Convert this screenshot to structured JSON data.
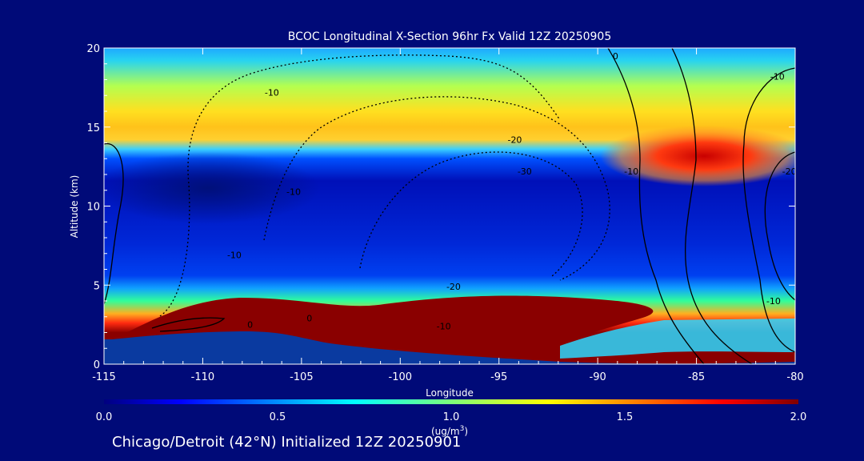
{
  "chart_data": {
    "type": "heatmap",
    "title": "BCOC Longitudinal X-Section 96hr  Fx Valid 12Z 20250905",
    "xlabel": "Longitude",
    "ylabel": "Altitude (km)",
    "xlim": [
      -115,
      -80
    ],
    "ylim": [
      0,
      20
    ],
    "x_ticks": [
      "-115",
      "-110",
      "-105",
      "-100",
      "-95",
      "-90",
      "-85",
      "-80"
    ],
    "x_tick_values": [
      -115,
      -110,
      -105,
      -100,
      -95,
      -90,
      -85,
      -80
    ],
    "y_ticks": [
      "0",
      "5",
      "10",
      "15",
      "20"
    ],
    "y_tick_values": [
      0,
      5,
      10,
      15,
      20
    ],
    "colorbar": {
      "min": 0.0,
      "max": 2.0,
      "ticks": [
        "0.0",
        "0.5",
        "1.0",
        "1.5",
        "2.0"
      ],
      "tick_values": [
        0.0,
        0.5,
        1.0,
        1.5,
        2.0
      ],
      "unit_label": "(ug/m",
      "unit_superscript": "3",
      "unit_close": ")"
    },
    "shaded_layers": [
      {
        "field": "BCOC",
        "alt_km": [
          16.5,
          20
        ],
        "lon_range": [
          -115,
          -80
        ],
        "value": 1.0
      },
      {
        "field": "BCOC",
        "alt_km": [
          14,
          16.5
        ],
        "lon_range": [
          -115,
          -80
        ],
        "value": 1.4
      },
      {
        "field": "BCOC",
        "alt_km": [
          11,
          14
        ],
        "lon_range": [
          -115,
          -80
        ],
        "value": 0.3
      },
      {
        "field": "BCOC",
        "alt_km": [
          6,
          11
        ],
        "lon_range": [
          -115,
          -80
        ],
        "value": 0.2
      },
      {
        "field": "BCOC",
        "alt_km": [
          3.5,
          5.5
        ],
        "lon_range": [
          -114,
          -86
        ],
        "value": 0.9
      },
      {
        "field": "BCOC",
        "alt_km": [
          1,
          3.5
        ],
        "lon_range": [
          -112,
          -87
        ],
        "value": 2.0
      },
      {
        "field": "BCOC",
        "alt_km": [
          12,
          14
        ],
        "lon_range": [
          -88,
          -80
        ],
        "value": 1.9
      }
    ],
    "contour_labels": [
      {
        "text": "-10",
        "lon": -106.5,
        "alt": 17
      },
      {
        "text": "-20",
        "lon": -94.2,
        "alt": 14
      },
      {
        "text": "-30",
        "lon": -93.7,
        "alt": 12
      },
      {
        "text": "-10",
        "lon": -88.3,
        "alt": 12
      },
      {
        "text": "-10",
        "lon": -80.9,
        "alt": 18
      },
      {
        "text": "-20",
        "lon": -80.3,
        "alt": 12
      },
      {
        "text": "-10",
        "lon": -105.4,
        "alt": 10.7
      },
      {
        "text": "-20",
        "lon": -97.3,
        "alt": 4.7
      },
      {
        "text": "-10",
        "lon": -97.8,
        "alt": 2.2
      },
      {
        "text": "0",
        "lon": -107.6,
        "alt": 2.3
      },
      {
        "text": "0",
        "lon": -104.6,
        "alt": 2.7
      },
      {
        "text": "-10",
        "lon": -108.4,
        "alt": 6.7
      },
      {
        "text": "-10",
        "lon": -81.1,
        "alt": 3.8
      },
      {
        "text": "0",
        "lon": -89.1,
        "alt": 19.3
      }
    ]
  },
  "footer": {
    "text": "Chicago/Detroit (42°N) Initialized 12Z 20250901"
  },
  "colors": {
    "background": "#000a78",
    "axis": "#ffffff",
    "contour": "#000000",
    "terrain": "#0a3aa0"
  }
}
